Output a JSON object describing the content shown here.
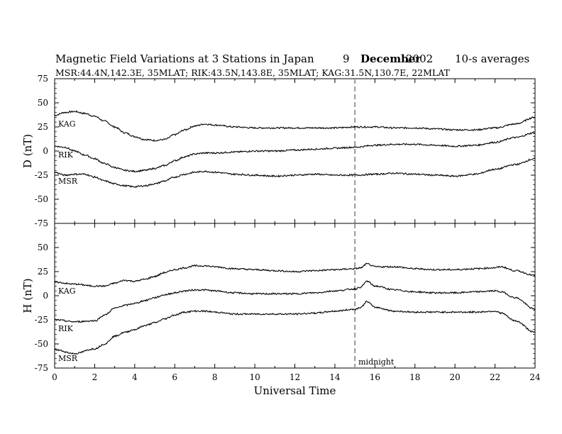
{
  "header": {
    "title": "Magnetic Field Variations at 3 Stations in Japan",
    "day": "9",
    "month": "December",
    "year": "2002",
    "averaging": "10-s averages",
    "subtitle": "MSR:44.4N,142.3E, 35MLAT;   RIK:43.5N,143.8E, 35MLAT;   KAG:31.5N,130.7E, 22MLAT"
  },
  "chart_data": [
    {
      "type": "line",
      "panel": "top",
      "ylabel": "D (nT)",
      "ylim": [
        -75,
        75
      ],
      "yticks": [
        -75,
        -50,
        -25,
        0,
        25,
        50,
        75
      ],
      "xlim": [
        0,
        24
      ],
      "series": [
        {
          "name": "KAG",
          "x": [
            0,
            0.5,
            1,
            1.5,
            2,
            2.5,
            3,
            3.5,
            4,
            4.5,
            5,
            5.5,
            6,
            6.5,
            7,
            7.5,
            8,
            9,
            10,
            11,
            12,
            13,
            14,
            15,
            16,
            17,
            18,
            19,
            20,
            21,
            22,
            23,
            24
          ],
          "values": [
            37,
            40,
            41,
            39,
            36,
            31,
            25,
            19,
            15,
            12,
            11,
            12,
            17,
            22,
            26,
            28,
            27,
            25,
            24,
            24,
            24,
            24,
            24,
            25,
            25,
            24,
            24,
            23,
            22,
            22,
            24,
            28,
            35
          ]
        },
        {
          "name": "RIK",
          "x": [
            0,
            0.5,
            1,
            1.5,
            2,
            2.5,
            3,
            3.5,
            4,
            4.5,
            5,
            5.5,
            6,
            6.5,
            7,
            7.5,
            8,
            9,
            10,
            11,
            12,
            13,
            14,
            15,
            16,
            17,
            18,
            19,
            20,
            21,
            22,
            23,
            24
          ],
          "values": [
            5,
            4,
            0,
            -4,
            -8,
            -13,
            -17,
            -20,
            -21,
            -20,
            -18,
            -15,
            -10,
            -6,
            -3,
            -2,
            -2,
            -1,
            0,
            0,
            1,
            2,
            3,
            4,
            6,
            7,
            7,
            6,
            5,
            6,
            9,
            14,
            19
          ]
        },
        {
          "name": "MSR",
          "x": [
            0,
            0.5,
            1,
            1.5,
            2,
            2.5,
            3,
            3.5,
            4,
            4.5,
            5,
            5.5,
            6,
            6.5,
            7,
            7.5,
            8,
            9,
            10,
            11,
            12,
            13,
            14,
            15,
            16,
            17,
            18,
            19,
            20,
            21,
            22,
            23,
            24
          ],
          "values": [
            -22,
            -25,
            -24,
            -24,
            -27,
            -31,
            -34,
            -36,
            -37,
            -36,
            -34,
            -31,
            -27,
            -24,
            -22,
            -21,
            -22,
            -24,
            -25,
            -26,
            -25,
            -24,
            -25,
            -25,
            -24,
            -23,
            -24,
            -25,
            -26,
            -24,
            -19,
            -14,
            -8
          ]
        }
      ],
      "series_labels": [
        "KAG",
        "RIK",
        "MSR"
      ]
    },
    {
      "type": "line",
      "panel": "bottom",
      "ylabel": "H (nT)",
      "xlabel": "Universal Time",
      "ylim": [
        -75,
        75
      ],
      "yticks": [
        -75,
        -50,
        -25,
        0,
        25,
        50,
        75
      ],
      "xlim": [
        0,
        24
      ],
      "xticks": [
        0,
        2,
        4,
        6,
        8,
        10,
        12,
        14,
        16,
        18,
        20,
        22,
        24
      ],
      "series": [
        {
          "name": "KAG",
          "x": [
            0,
            1,
            2,
            2.5,
            3,
            3.5,
            4,
            4.5,
            5,
            5.5,
            6,
            6.5,
            7,
            7.5,
            8,
            9,
            10,
            11,
            12,
            13,
            14,
            15,
            15.3,
            15.6,
            16,
            17,
            18,
            19,
            20,
            21,
            22,
            22.3,
            23,
            24
          ],
          "values": [
            14,
            12,
            10,
            10,
            13,
            16,
            15,
            17,
            20,
            24,
            27,
            29,
            31,
            31,
            30,
            28,
            27,
            26,
            25,
            26,
            27,
            28,
            29,
            33,
            30,
            30,
            28,
            27,
            27,
            28,
            29,
            30,
            26,
            21
          ]
        },
        {
          "name": "RIK",
          "x": [
            0,
            1,
            2,
            2.5,
            3,
            3.5,
            4,
            4.5,
            5,
            5.5,
            6,
            6.5,
            7,
            7.5,
            8,
            9,
            10,
            11,
            12,
            13,
            14,
            15,
            15.3,
            15.6,
            16,
            17,
            18,
            19,
            20,
            21,
            22,
            22.3,
            23,
            24
          ],
          "values": [
            -25,
            -27,
            -26,
            -20,
            -13,
            -10,
            -8,
            -5,
            -2,
            1,
            3,
            5,
            6,
            6,
            5,
            3,
            2,
            2,
            2,
            3,
            5,
            7,
            9,
            15,
            10,
            6,
            4,
            3,
            3,
            4,
            5,
            4,
            -2,
            -14
          ]
        },
        {
          "name": "MSR",
          "x": [
            0,
            1,
            2,
            2.5,
            3,
            3.5,
            4,
            4.5,
            5,
            5.5,
            6,
            6.5,
            7,
            7.5,
            8,
            9,
            10,
            11,
            12,
            13,
            14,
            15,
            15.3,
            15.6,
            16,
            17,
            18,
            19,
            20,
            21,
            22,
            22.3,
            23,
            24
          ],
          "values": [
            -56,
            -60,
            -55,
            -50,
            -42,
            -38,
            -35,
            -31,
            -28,
            -24,
            -20,
            -17,
            -16,
            -16,
            -17,
            -19,
            -19,
            -19,
            -19,
            -18,
            -16,
            -14,
            -12,
            -6,
            -12,
            -16,
            -17,
            -17,
            -17,
            -17,
            -16,
            -18,
            -26,
            -38
          ]
        }
      ],
      "series_labels": [
        "KAG",
        "RIK",
        "MSR"
      ],
      "marker": {
        "x": 15,
        "label": "midnight",
        "color": "#999999",
        "style": "dashed"
      }
    }
  ]
}
